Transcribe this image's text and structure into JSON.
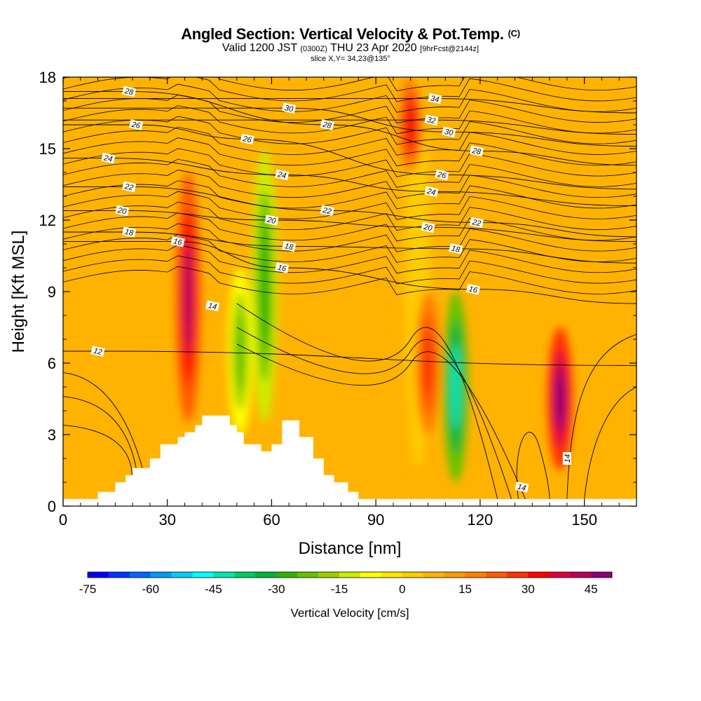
{
  "title": {
    "main": "Angled Section: Vertical Velocity & Pot.Temp.",
    "main_mark": "(C)",
    "valid_a": "Valid 1200 JST",
    "valid_b": "(0300Z)",
    "valid_c": "THU 23 Apr 2020",
    "valid_d": "[9hrFcst@2144z]",
    "slice": "slice X,Y= 34,23@135°"
  },
  "chart_data": {
    "type": "heatmap",
    "xlabel": "Distance [nm]",
    "ylabel": "Height [Kft MSL]",
    "xlim": [
      0,
      165
    ],
    "ylim": [
      0,
      18
    ],
    "x_ticks": [
      0,
      30,
      60,
      90,
      120,
      150
    ],
    "y_ticks": [
      0,
      3,
      6,
      9,
      12,
      15,
      18
    ],
    "colorbar": {
      "label": "Vertical Velocity [cm/s]",
      "ticks": [
        -75,
        -60,
        -45,
        -30,
        -15,
        0,
        15,
        30,
        45
      ],
      "min": -75,
      "max": 50,
      "step": 5,
      "colors": [
        "#0000ff",
        "#0033ff",
        "#0066ff",
        "#0099ff",
        "#00ccff",
        "#00ffff",
        "#00e5b0",
        "#00cc66",
        "#00b33c",
        "#33b300",
        "#66c200",
        "#99d100",
        "#ccee00",
        "#ffff00",
        "#ffe600",
        "#ffcc00",
        "#ffb300",
        "#ff9900",
        "#ff7f00",
        "#ff5a00",
        "#ff3300",
        "#ff0000",
        "#e0003c",
        "#b8005a",
        "#8c0078",
        "#600090"
      ]
    },
    "features": [
      {
        "label": "updraft",
        "x": 36,
        "y0": 3.5,
        "y1": 14,
        "w": 40
      },
      {
        "label": "downdraft",
        "x": 51,
        "y0": 3,
        "y1": 10,
        "w": -22
      },
      {
        "label": "downdraft",
        "x": 58,
        "y0": 3.5,
        "y1": 15,
        "w": -30
      },
      {
        "label": "downdraft",
        "x": 102,
        "y0": 1.5,
        "y1": 18,
        "w": 0
      },
      {
        "label": "downdraft",
        "x": 113,
        "y0": 1,
        "y1": 9,
        "w": -45
      },
      {
        "label": "updraft",
        "x": 105,
        "y0": 3,
        "y1": 9,
        "w": 25
      },
      {
        "label": "updraft",
        "x": 143,
        "y0": 1.5,
        "y1": 7.5,
        "w": 48
      },
      {
        "label": "updraft",
        "x": 100,
        "y0": 14,
        "y1": 18,
        "w": 32
      }
    ],
    "isentropes": {
      "unit": "C",
      "labels": [
        {
          "value": "12",
          "x": 10,
          "y": 6.5
        },
        {
          "value": "14",
          "x": 43,
          "y": 8.4
        },
        {
          "value": "14",
          "x": 132,
          "y": 0.8
        },
        {
          "value": "14",
          "x": 145,
          "y": 2.0
        },
        {
          "value": "16",
          "x": 33,
          "y": 11.1
        },
        {
          "value": "16",
          "x": 63,
          "y": 10.0
        },
        {
          "value": "16",
          "x": 118,
          "y": 9.1
        },
        {
          "value": "18",
          "x": 19,
          "y": 11.5
        },
        {
          "value": "18",
          "x": 65,
          "y": 10.9
        },
        {
          "value": "18",
          "x": 113,
          "y": 10.8
        },
        {
          "value": "20",
          "x": 17,
          "y": 12.4
        },
        {
          "value": "20",
          "x": 60,
          "y": 12.0
        },
        {
          "value": "20",
          "x": 105,
          "y": 11.7
        },
        {
          "value": "22",
          "x": 19,
          "y": 13.4
        },
        {
          "value": "22",
          "x": 76,
          "y": 12.4
        },
        {
          "value": "22",
          "x": 119,
          "y": 11.9
        },
        {
          "value": "24",
          "x": 13,
          "y": 14.6
        },
        {
          "value": "24",
          "x": 63,
          "y": 13.9
        },
        {
          "value": "24",
          "x": 106,
          "y": 13.2
        },
        {
          "value": "26",
          "x": 21,
          "y": 16.0
        },
        {
          "value": "26",
          "x": 53,
          "y": 15.4
        },
        {
          "value": "26",
          "x": 109,
          "y": 13.9
        },
        {
          "value": "28",
          "x": 19,
          "y": 17.4
        },
        {
          "value": "28",
          "x": 76,
          "y": 16.0
        },
        {
          "value": "28",
          "x": 119,
          "y": 14.9
        },
        {
          "value": "30",
          "x": 65,
          "y": 16.7
        },
        {
          "value": "30",
          "x": 111,
          "y": 15.7
        },
        {
          "value": "32",
          "x": 106,
          "y": 16.2
        },
        {
          "value": "34",
          "x": 107,
          "y": 17.1
        }
      ]
    },
    "terrain": [
      [
        0,
        0.3
      ],
      [
        10,
        0.3
      ],
      [
        10,
        0.6
      ],
      [
        15,
        0.6
      ],
      [
        15,
        1.0
      ],
      [
        18,
        1.0
      ],
      [
        18,
        1.3
      ],
      [
        20,
        1.3
      ],
      [
        20,
        1.6
      ],
      [
        25,
        1.6
      ],
      [
        25,
        2.0
      ],
      [
        28,
        2.0
      ],
      [
        28,
        2.6
      ],
      [
        33,
        2.6
      ],
      [
        33,
        2.9
      ],
      [
        35,
        2.9
      ],
      [
        35,
        3.1
      ],
      [
        38,
        3.1
      ],
      [
        38,
        3.4
      ],
      [
        40,
        3.4
      ],
      [
        40,
        3.8
      ],
      [
        48,
        3.8
      ],
      [
        48,
        3.4
      ],
      [
        50,
        3.4
      ],
      [
        50,
        3.1
      ],
      [
        52,
        3.1
      ],
      [
        52,
        2.6
      ],
      [
        57,
        2.6
      ],
      [
        57,
        2.3
      ],
      [
        60,
        2.3
      ],
      [
        60,
        2.6
      ],
      [
        63,
        2.6
      ],
      [
        63,
        3.6
      ],
      [
        68,
        3.6
      ],
      [
        68,
        2.9
      ],
      [
        72,
        2.9
      ],
      [
        72,
        2.0
      ],
      [
        75,
        2.0
      ],
      [
        75,
        1.3
      ],
      [
        78,
        1.3
      ],
      [
        78,
        1.0
      ],
      [
        82,
        1.0
      ],
      [
        82,
        0.6
      ],
      [
        85,
        0.6
      ],
      [
        85,
        0.3
      ],
      [
        165,
        0.3
      ]
    ]
  }
}
